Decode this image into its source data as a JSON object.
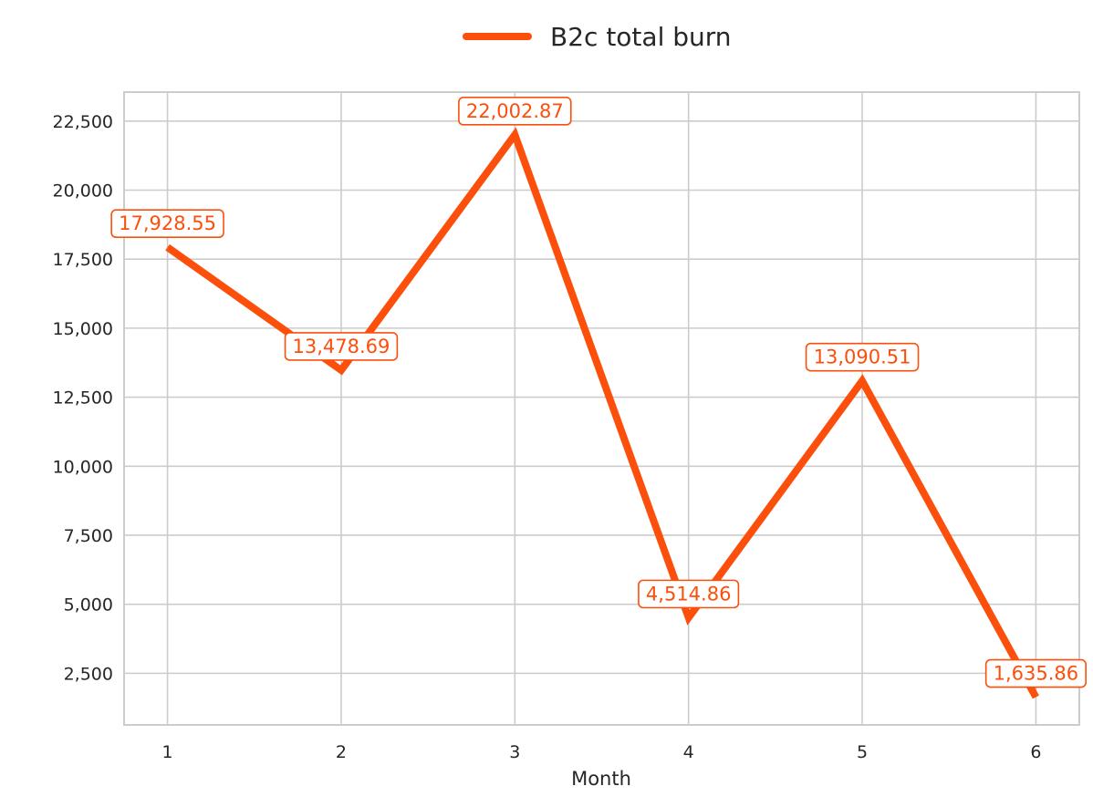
{
  "chart_data": {
    "type": "line",
    "title": "",
    "xlabel": "Month",
    "ylabel": "",
    "x": [
      1,
      2,
      3,
      4,
      5,
      6
    ],
    "xticks": [
      "1",
      "2",
      "3",
      "4",
      "5",
      "6"
    ],
    "xlim": [
      0.75,
      6.25
    ],
    "ylim": [
      630,
      23550
    ],
    "yticks": [
      2500,
      5000,
      7500,
      10000,
      12500,
      15000,
      17500,
      20000,
      22500
    ],
    "ytick_labels": [
      "2,500",
      "5,000",
      "7,500",
      "10,000",
      "12,500",
      "15,000",
      "17,500",
      "20,000",
      "22,500"
    ],
    "grid": true,
    "legend_position": "top-center",
    "series": [
      {
        "name": "B2c total burn",
        "color": "#fc4f0c",
        "values": [
          17928.55,
          13478.69,
          22002.87,
          4514.86,
          13090.51,
          1635.86
        ],
        "labels": [
          "17,928.55",
          "13,478.69",
          "22,002.87",
          "4,514.86",
          "13,090.51",
          "1,635.86"
        ]
      }
    ]
  }
}
